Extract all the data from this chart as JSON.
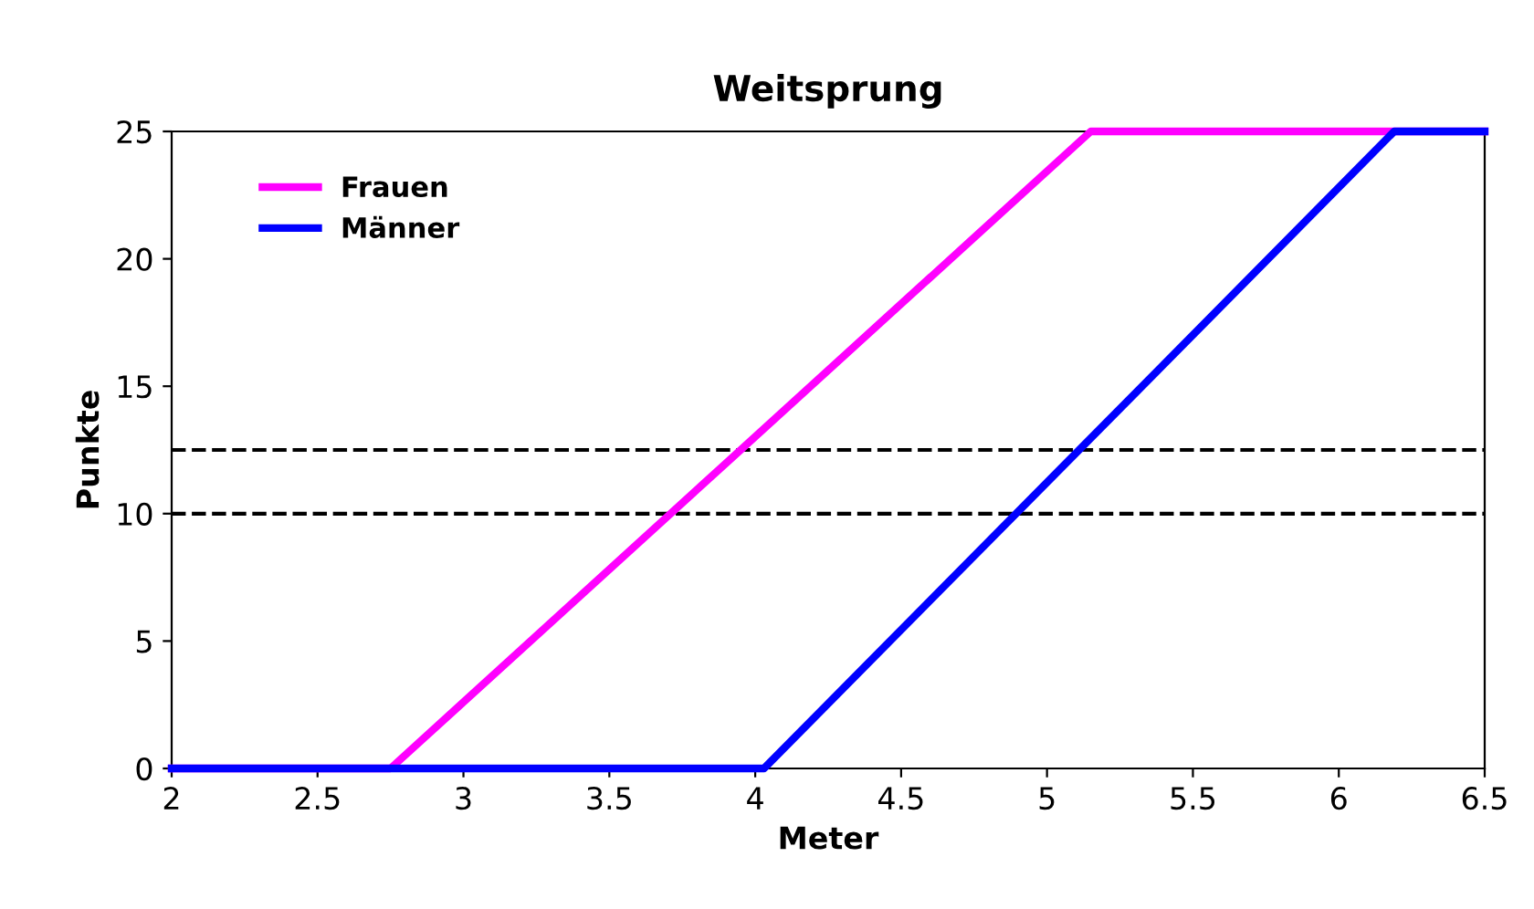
{
  "chart_data": {
    "type": "line",
    "title": "Weitsprung",
    "xlabel": "Meter",
    "ylabel": "Punkte",
    "series": [
      {
        "name": "Frauen",
        "color": "#ff00ff",
        "x": [
          2,
          2.75,
          5.15,
          6.5
        ],
        "values": [
          0,
          0,
          25,
          25
        ]
      },
      {
        "name": "Männer",
        "color": "#0000ff",
        "x": [
          2,
          4.03,
          6.19,
          6.5
        ],
        "values": [
          0,
          0,
          25,
          25
        ]
      }
    ],
    "xlim": [
      2,
      6.5
    ],
    "xticks": [
      2,
      2.5,
      3,
      3.5,
      4,
      4.5,
      5,
      5.5,
      6,
      6.5
    ],
    "ylim": [
      0,
      25
    ],
    "yticks": [
      0,
      5,
      10,
      15,
      20,
      25
    ],
    "ref_lines": [
      {
        "axis": "y",
        "value": 12.5,
        "color": "#000000",
        "line_style": "dashed"
      },
      {
        "axis": "y",
        "value": 10,
        "color": "#000000",
        "line_style": "dashed"
      }
    ],
    "legend": "top left",
    "grid": false,
    "marker": "none",
    "line_style": "solid"
  }
}
